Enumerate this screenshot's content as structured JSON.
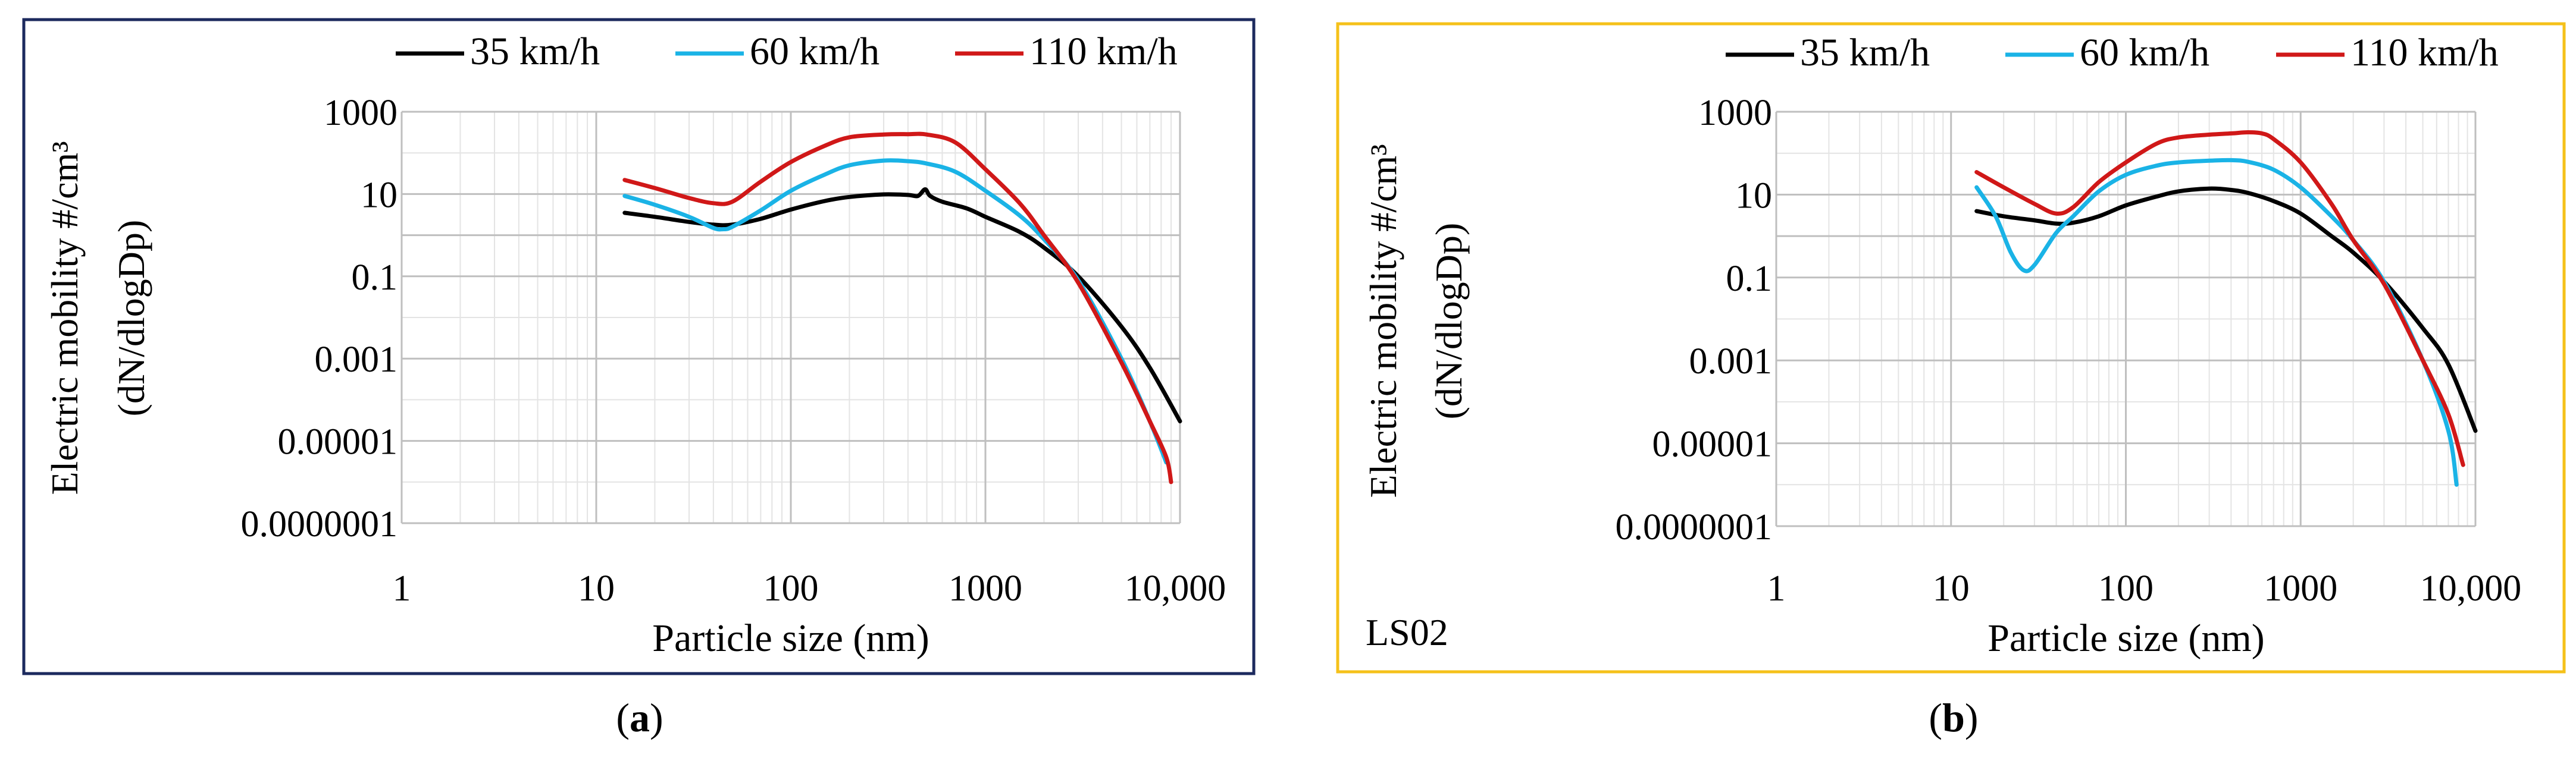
{
  "colors": {
    "frame_a": "#1c2a5e",
    "frame_b": "#f5c11a",
    "grid_major": "#bfbfbf",
    "grid_minor": "#e4e4e4",
    "series_35": "#000000",
    "series_60": "#1ab3e6",
    "series_110": "#d01818"
  },
  "panels": [
    {
      "caption_letter": "a",
      "tag": "",
      "legend": [
        "35 km/h",
        "60 km/h",
        "110 km/h"
      ]
    },
    {
      "caption_letter": "b",
      "tag": "LS02",
      "legend": [
        "35 km/h",
        "60 km/h",
        "110 km/h"
      ]
    }
  ],
  "chart_data": [
    {
      "type": "line",
      "title": "",
      "xlabel": "Particle size (nm)",
      "ylabel_line1": "Electric mobility #/cm³",
      "ylabel_line2": "(dN/dlogDp)",
      "x_scale": "log",
      "y_scale": "log",
      "xlim": [
        1,
        10000
      ],
      "ylim": [
        1e-07,
        1000
      ],
      "x_ticks": [
        "1",
        "10",
        "100",
        "1000",
        "10,000"
      ],
      "y_ticks": [
        "1000",
        "10",
        "0.1",
        "0.001",
        "0.00001",
        "0.0000001"
      ],
      "grid": true,
      "legend_position": "top",
      "series": [
        {
          "name": "35 km/h",
          "color": "#000000",
          "points": [
            [
              14,
              3.5
            ],
            [
              20,
              2.8
            ],
            [
              30,
              2.1
            ],
            [
              40,
              1.8
            ],
            [
              50,
              1.8
            ],
            [
              70,
              2.5
            ],
            [
              100,
              4.2
            ],
            [
              150,
              6.8
            ],
            [
              200,
              8.5
            ],
            [
              300,
              9.8
            ],
            [
              400,
              9.5
            ],
            [
              450,
              9.0
            ],
            [
              490,
              13
            ],
            [
              520,
              9.0
            ],
            [
              600,
              6.5
            ],
            [
              800,
              4.5
            ],
            [
              1000,
              2.8
            ],
            [
              1500,
              1.2
            ],
            [
              2000,
              0.5
            ],
            [
              3000,
              0.1
            ],
            [
              5000,
              0.006
            ],
            [
              7000,
              0.0006
            ],
            [
              10000,
              3e-05
            ]
          ]
        },
        {
          "name": "60 km/h",
          "color": "#1ab3e6",
          "points": [
            [
              14,
              9
            ],
            [
              20,
              5.5
            ],
            [
              30,
              2.8
            ],
            [
              40,
              1.5
            ],
            [
              45,
              1.4
            ],
            [
              50,
              1.6
            ],
            [
              70,
              4
            ],
            [
              100,
              12
            ],
            [
              150,
              30
            ],
            [
              200,
              50
            ],
            [
              300,
              65
            ],
            [
              400,
              63
            ],
            [
              500,
              55
            ],
            [
              700,
              35
            ],
            [
              1000,
              12
            ],
            [
              1500,
              3
            ],
            [
              2000,
              0.8
            ],
            [
              3000,
              0.08
            ],
            [
              5000,
              0.001
            ],
            [
              7000,
              3e-05
            ],
            [
              8500,
              3e-06
            ]
          ]
        },
        {
          "name": "110 km/h",
          "color": "#d01818",
          "points": [
            [
              14,
              22
            ],
            [
              20,
              14
            ],
            [
              30,
              8
            ],
            [
              40,
              6
            ],
            [
              50,
              6.5
            ],
            [
              70,
              20
            ],
            [
              100,
              60
            ],
            [
              150,
              150
            ],
            [
              200,
              240
            ],
            [
              300,
              280
            ],
            [
              400,
              285
            ],
            [
              500,
              280
            ],
            [
              700,
              180
            ],
            [
              1000,
              40
            ],
            [
              1500,
              6
            ],
            [
              2000,
              1
            ],
            [
              3000,
              0.07
            ],
            [
              5000,
              0.0008
            ],
            [
              7000,
              3e-05
            ],
            [
              8500,
              4e-06
            ],
            [
              9000,
              1e-06
            ]
          ]
        }
      ]
    },
    {
      "type": "line",
      "title": "",
      "xlabel": "Particle size (nm)",
      "ylabel_line1": "Electric mobility #/cm³",
      "ylabel_line2": "(dN/dlogDp)",
      "x_scale": "log",
      "y_scale": "log",
      "xlim": [
        1,
        10000
      ],
      "ylim": [
        1e-07,
        1000
      ],
      "x_ticks": [
        "1",
        "10",
        "100",
        "1000",
        "10,000"
      ],
      "y_ticks": [
        "1000",
        "10",
        "0.1",
        "0.001",
        "0.00001",
        "0.0000001"
      ],
      "grid": true,
      "legend_position": "top",
      "series": [
        {
          "name": "35 km/h",
          "color": "#000000",
          "points": [
            [
              14,
              4
            ],
            [
              20,
              3
            ],
            [
              30,
              2.4
            ],
            [
              40,
              2.0
            ],
            [
              50,
              2.1
            ],
            [
              70,
              3
            ],
            [
              100,
              5.5
            ],
            [
              150,
              9
            ],
            [
              200,
              12
            ],
            [
              300,
              14
            ],
            [
              400,
              13
            ],
            [
              500,
              11
            ],
            [
              700,
              7
            ],
            [
              1000,
              3.5
            ],
            [
              1500,
              1.0
            ],
            [
              2000,
              0.4
            ],
            [
              3000,
              0.08
            ],
            [
              5000,
              0.006
            ],
            [
              7000,
              0.0008
            ],
            [
              10000,
              2e-05
            ]
          ]
        },
        {
          "name": "60 km/h",
          "color": "#1ab3e6",
          "points": [
            [
              14,
              15
            ],
            [
              18,
              3
            ],
            [
              22,
              0.4
            ],
            [
              26,
              0.15
            ],
            [
              30,
              0.2
            ],
            [
              40,
              1.2
            ],
            [
              50,
              3
            ],
            [
              70,
              12
            ],
            [
              100,
              30
            ],
            [
              150,
              50
            ],
            [
              200,
              60
            ],
            [
              300,
              66
            ],
            [
              400,
              68
            ],
            [
              500,
              62
            ],
            [
              700,
              40
            ],
            [
              1000,
              15
            ],
            [
              1500,
              3
            ],
            [
              2000,
              0.8
            ],
            [
              3000,
              0.08
            ],
            [
              5000,
              0.001
            ],
            [
              7000,
              2e-05
            ],
            [
              7800,
              1e-06
            ]
          ]
        },
        {
          "name": "110 km/h",
          "color": "#d01818",
          "points": [
            [
              14,
              35
            ],
            [
              20,
              15
            ],
            [
              30,
              6
            ],
            [
              40,
              3.5
            ],
            [
              50,
              5
            ],
            [
              70,
              20
            ],
            [
              100,
              60
            ],
            [
              150,
              170
            ],
            [
              200,
              240
            ],
            [
              300,
              280
            ],
            [
              400,
              300
            ],
            [
              500,
              320
            ],
            [
              600,
              300
            ],
            [
              700,
              220
            ],
            [
              1000,
              60
            ],
            [
              1500,
              6
            ],
            [
              2000,
              0.8
            ],
            [
              3000,
              0.07
            ],
            [
              5000,
              0.001
            ],
            [
              7000,
              5e-05
            ],
            [
              8500,
              3e-06
            ]
          ]
        }
      ]
    }
  ]
}
